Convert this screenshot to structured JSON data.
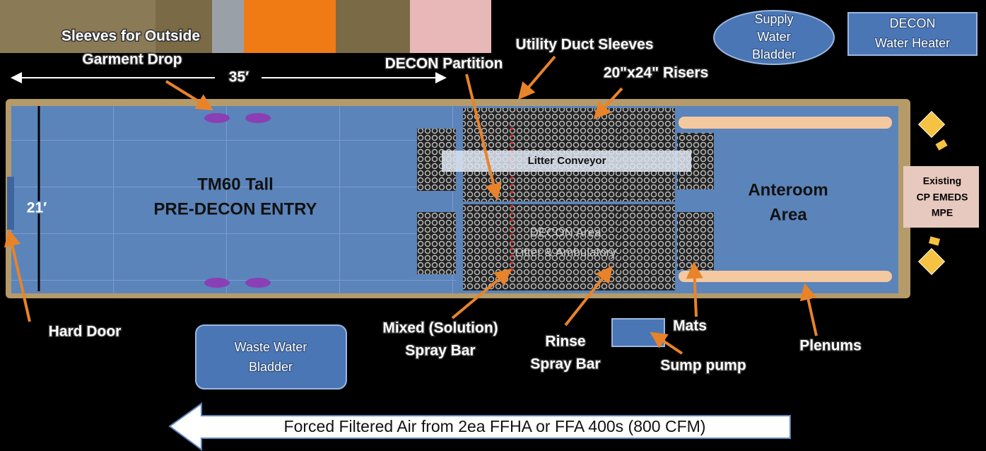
{
  "photo": {
    "caption": "Sleeves for Outside"
  },
  "dimensions": {
    "length": "35′",
    "width": "21′"
  },
  "tent": {
    "pre_decon": [
      "TM60 Tall",
      "PRE-DECON ENTRY"
    ],
    "conveyor": "Litter Conveyor",
    "decon_area": [
      "DECON Area",
      "Litter & Ambulatory"
    ],
    "anteroom": [
      "Anteroom",
      "Area"
    ]
  },
  "callouts": {
    "garment_drop": "Garment Drop",
    "utility_duct": "Utility Duct Sleeves",
    "partition": "DECON Partition",
    "risers": "20\"x24\" Risers",
    "hard_door": "Hard Door",
    "mixed_spray": [
      "Mixed (Solution)",
      "Spray Bar"
    ],
    "rinse": [
      "Rinse",
      "Spray Bar"
    ],
    "mats": "Mats",
    "sump": "Sump pump",
    "plenums": "Plenums"
  },
  "equipment": {
    "supply_bladder": [
      "Supply",
      "Water",
      "Bladder"
    ],
    "water_heater": [
      "DECON",
      "Water Heater"
    ],
    "waste_bladder": [
      "Waste Water",
      "Bladder"
    ],
    "existing": [
      "Existing",
      "CP EMEDS",
      "MPE"
    ]
  },
  "airflow": "Forced Filtered Air from 2ea FFHA or FFA 400s (800 CFM)"
}
